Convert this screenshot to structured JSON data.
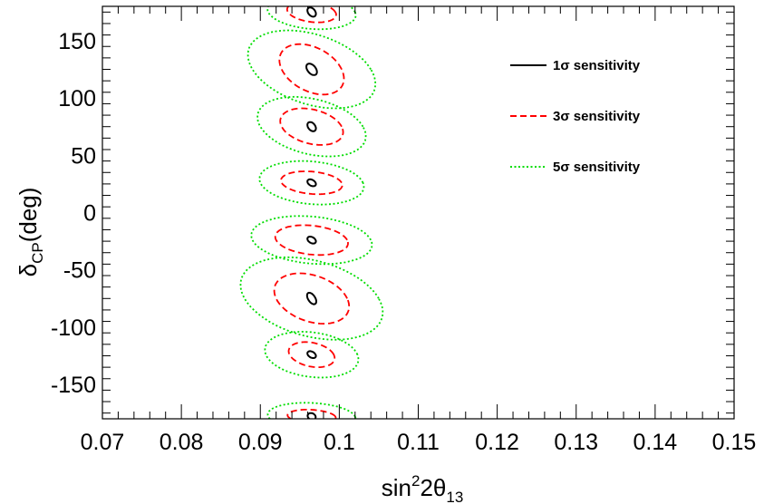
{
  "chart_data": {
    "type": "contour",
    "title": "",
    "xlabel": {
      "base": "sin",
      "sup": "2",
      "mid": "2θ",
      "sub": "13"
    },
    "ylabel": {
      "base": "δ",
      "sub": "CP",
      "rest": "(deg)"
    },
    "xlim": [
      0.07,
      0.15
    ],
    "ylim": [
      -180,
      180
    ],
    "xticks": [
      0.07,
      0.08,
      0.09,
      0.1,
      0.11,
      0.12,
      0.13,
      0.14,
      0.15
    ],
    "xtick_labels": [
      "0.07",
      "0.08",
      "0.09",
      "0.1",
      "0.11",
      "0.12",
      "0.13",
      "0.14",
      "0.15"
    ],
    "yticks": [
      -150,
      -100,
      -50,
      0,
      50,
      100,
      150
    ],
    "ytick_labels": [
      "-150",
      "-100",
      "-50",
      "0",
      "50",
      "100",
      "150"
    ],
    "grid": false,
    "legend_position": "top-right",
    "series": [
      {
        "name": "1σ sensitivity",
        "color": "#000000",
        "dash": "solid"
      },
      {
        "name": "3σ sensitivity",
        "color": "#ff0000",
        "dash": "dashed"
      },
      {
        "name": "5σ sensitivity",
        "color": "#00dd00",
        "dash": "dotted"
      }
    ],
    "contours": [
      {
        "center": [
          0.0965,
          175
        ],
        "levels": [
          {
            "sigma": 1,
            "dx": 0.0005,
            "dy": 4,
            "tilt": 0.0002
          },
          {
            "sigma": 3,
            "dx": 0.003,
            "dy": 9,
            "tilt": 0.0008
          },
          {
            "sigma": 5,
            "dx": 0.0055,
            "dy": 15,
            "tilt": 0.001
          }
        ]
      },
      {
        "center": [
          0.0965,
          125
        ],
        "levels": [
          {
            "sigma": 1,
            "dx": 0.0006,
            "dy": 5,
            "tilt": 0.0003
          },
          {
            "sigma": 3,
            "dx": 0.0038,
            "dy": 22,
            "tilt": 0.0015
          },
          {
            "sigma": 5,
            "dx": 0.0075,
            "dy": 34,
            "tilt": 0.003
          }
        ]
      },
      {
        "center": [
          0.0965,
          75
        ],
        "levels": [
          {
            "sigma": 1,
            "dx": 0.0005,
            "dy": 4,
            "tilt": 0.0002
          },
          {
            "sigma": 3,
            "dx": 0.0038,
            "dy": 16,
            "tilt": 0.0012
          },
          {
            "sigma": 5,
            "dx": 0.0065,
            "dy": 26,
            "tilt": 0.0022
          }
        ]
      },
      {
        "center": [
          0.0965,
          26
        ],
        "levels": [
          {
            "sigma": 1,
            "dx": 0.0005,
            "dy": 3,
            "tilt": 0.0002
          },
          {
            "sigma": 3,
            "dx": 0.0038,
            "dy": 10,
            "tilt": 0.0008
          },
          {
            "sigma": 5,
            "dx": 0.0065,
            "dy": 19,
            "tilt": 0.0012
          }
        ]
      },
      {
        "center": [
          0.0965,
          -24
        ],
        "levels": [
          {
            "sigma": 1,
            "dx": 0.0005,
            "dy": 3,
            "tilt": 0.0002
          },
          {
            "sigma": 3,
            "dx": 0.0045,
            "dy": 13,
            "tilt": 0.001
          },
          {
            "sigma": 5,
            "dx": 0.0075,
            "dy": 21,
            "tilt": 0.0015
          }
        ]
      },
      {
        "center": [
          0.0965,
          -75
        ],
        "levels": [
          {
            "sigma": 1,
            "dx": 0.0005,
            "dy": 5,
            "tilt": 0.0003
          },
          {
            "sigma": 3,
            "dx": 0.0045,
            "dy": 22,
            "tilt": 0.0015
          },
          {
            "sigma": 5,
            "dx": 0.0085,
            "dy": 36,
            "tilt": 0.003
          }
        ]
      },
      {
        "center": [
          0.0965,
          -124
        ],
        "levels": [
          {
            "sigma": 1,
            "dx": 0.0005,
            "dy": 3,
            "tilt": 0.0002
          },
          {
            "sigma": 3,
            "dx": 0.0028,
            "dy": 11,
            "tilt": 0.0008
          },
          {
            "sigma": 5,
            "dx": 0.0058,
            "dy": 20,
            "tilt": 0.0012
          }
        ]
      },
      {
        "center": [
          0.0965,
          -178
        ],
        "levels": [
          {
            "sigma": 1,
            "dx": 0.0005,
            "dy": 3,
            "tilt": 0.0001
          },
          {
            "sigma": 3,
            "dx": 0.003,
            "dy": 6,
            "tilt": 0.0006
          },
          {
            "sigma": 5,
            "dx": 0.0055,
            "dy": 12,
            "tilt": 0.0008
          }
        ]
      }
    ]
  }
}
